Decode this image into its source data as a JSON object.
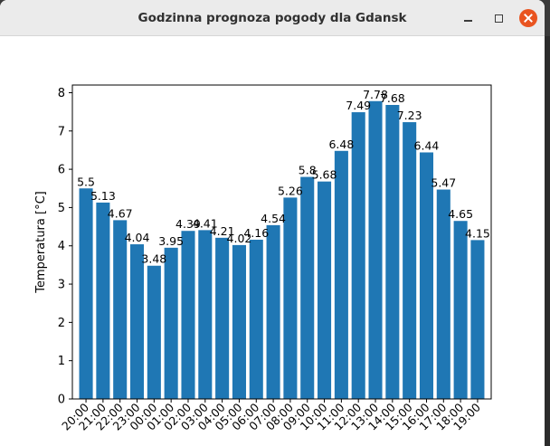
{
  "window": {
    "title": "Godzinna prognoza pogody dla Gdansk"
  },
  "chart_data": {
    "type": "bar",
    "title": "",
    "xlabel": "",
    "ylabel": "Temperatura [°C]",
    "ylim": [
      0,
      8.2
    ],
    "yticks": [
      0,
      1,
      2,
      3,
      4,
      5,
      6,
      7,
      8
    ],
    "grid": false,
    "bar_color": "#1f77b4",
    "categories": [
      "20:00",
      "21:00",
      "22:00",
      "23:00",
      "00:00",
      "01:00",
      "02:00",
      "03:00",
      "04:00",
      "05:00",
      "06:00",
      "07:00",
      "08:00",
      "09:00",
      "10:00",
      "11:00",
      "12:00",
      "13:00",
      "14:00",
      "15:00",
      "16:00",
      "17:00",
      "18:00",
      "19:00"
    ],
    "values": [
      5.5,
      5.13,
      4.67,
      4.04,
      3.48,
      3.95,
      4.39,
      4.41,
      4.21,
      4.02,
      4.16,
      4.54,
      5.26,
      5.8,
      5.68,
      6.48,
      7.49,
      7.78,
      7.68,
      7.23,
      6.44,
      5.47,
      4.65,
      4.15
    ]
  }
}
